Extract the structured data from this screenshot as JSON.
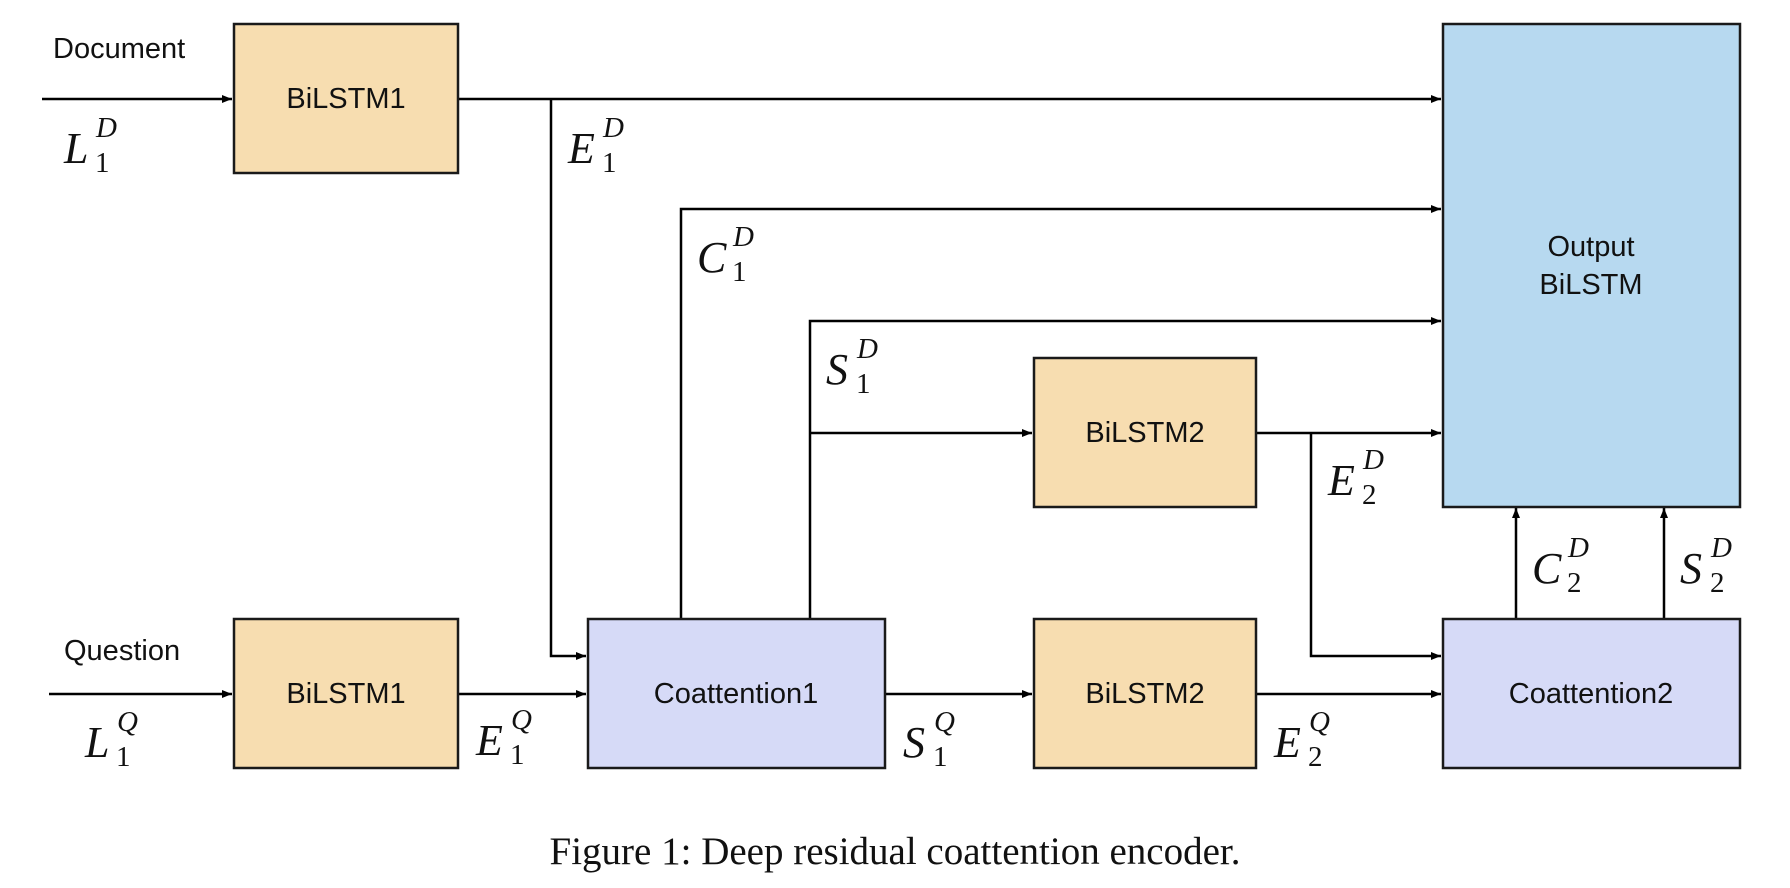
{
  "colors": {
    "bilstm_fill": "#f7ddb0",
    "coattention_fill": "#d6daf7",
    "output_fill": "#b7d9f0",
    "line": "#000000"
  },
  "inputs": {
    "document": "Document",
    "question": "Question"
  },
  "boxes": {
    "doc_bilstm1": "BiLSTM1",
    "q_bilstm1": "BiLSTM1",
    "coattention1": "Coattention1",
    "bilstm2_top": "BiLSTM2",
    "bilstm2_bottom": "BiLSTM2",
    "coattention2": "Coattention2",
    "output_line1": "Output",
    "output_line2": "BiLSTM"
  },
  "symbols": {
    "L1D": {
      "base": "L",
      "sup": "D",
      "sub": "1"
    },
    "L1Q": {
      "base": "L",
      "sup": "Q",
      "sub": "1"
    },
    "E1D": {
      "base": "E",
      "sup": "D",
      "sub": "1"
    },
    "E1Q": {
      "base": "E",
      "sup": "Q",
      "sub": "1"
    },
    "C1D": {
      "base": "C",
      "sup": "D",
      "sub": "1"
    },
    "S1D": {
      "base": "S",
      "sup": "D",
      "sub": "1"
    },
    "S1Q": {
      "base": "S",
      "sup": "Q",
      "sub": "1"
    },
    "E2D": {
      "base": "E",
      "sup": "D",
      "sub": "2"
    },
    "E2Q": {
      "base": "E",
      "sup": "Q",
      "sub": "2"
    },
    "C2D": {
      "base": "C",
      "sup": "D",
      "sub": "2"
    },
    "S2D": {
      "base": "S",
      "sup": "D",
      "sub": "2"
    }
  },
  "caption": "Figure 1: Deep residual coattention encoder."
}
